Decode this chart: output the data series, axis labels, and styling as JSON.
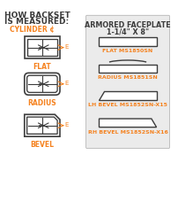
{
  "title_line1": "HOW BACKSET",
  "title_line2": "IS MEASURED:",
  "cylinder_label": "CYLINDER ¢",
  "left_labels": [
    "FLAT",
    "RADIUS",
    "BEVEL"
  ],
  "right_title_line1": "ARMORED FACEPLATE",
  "right_title_line2": "1-1/4\" X 8\"",
  "right_labels": [
    "FLAT MS1850SN",
    "RADIUS MS1851SN",
    "LH BEVEL MS1852SN-X15",
    "RH BEVEL MS1852SN-X16"
  ],
  "orange": "#F5821F",
  "dark_gray": "#3C3C3C",
  "light_gray": "#D8D8D8",
  "mid_gray": "#AAAAAA",
  "bg": "#FFFFFF",
  "box_bg": "#EBEBEB"
}
